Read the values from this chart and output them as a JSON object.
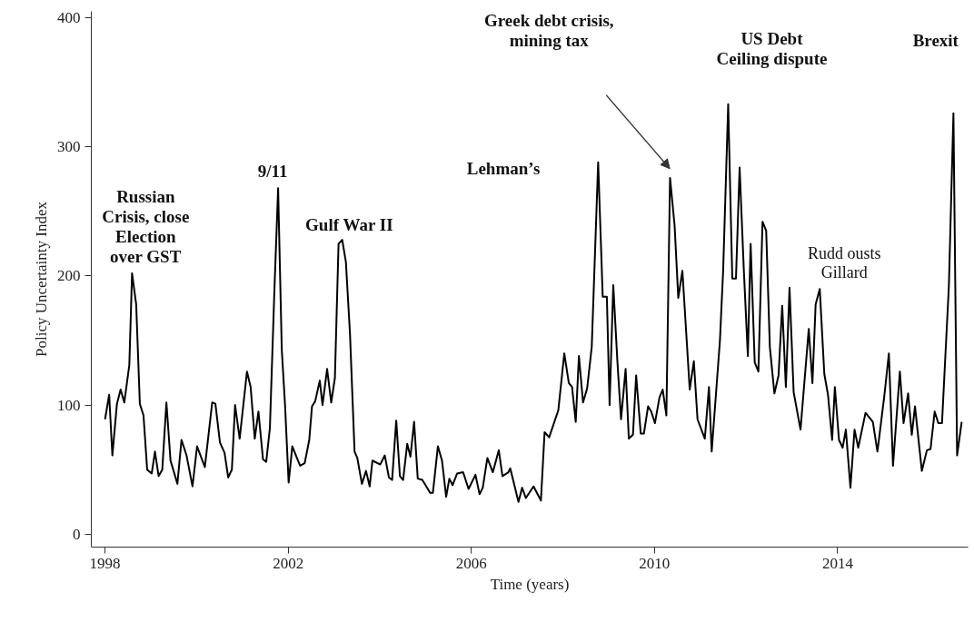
{
  "chart_data": {
    "type": "line",
    "xlabel": "Time (years)",
    "ylabel": "Policy Uncertainty Index",
    "color": "#000000",
    "x": [
      1998.0,
      1998.09,
      1998.16,
      1998.26,
      1998.34,
      1998.42,
      1998.53,
      1998.59,
      1998.68,
      1998.76,
      1998.84,
      1998.92,
      1999.02,
      1999.09,
      1999.17,
      1999.25,
      1999.34,
      1999.43,
      1999.58,
      1999.67,
      1999.78,
      1999.91,
      2000.01,
      2000.18,
      2000.34,
      2000.41,
      2000.51,
      2000.61,
      2000.69,
      2000.77,
      2000.84,
      2000.94,
      2001.1,
      2001.18,
      2001.27,
      2001.35,
      2001.45,
      2001.52,
      2001.6,
      2001.7,
      2001.78,
      2001.86,
      2001.93,
      2002.01,
      2002.09,
      2002.26,
      2002.36,
      2002.46,
      2002.52,
      2002.59,
      2002.69,
      2002.75,
      2002.85,
      2002.94,
      2003.02,
      2003.1,
      2003.18,
      2003.26,
      2003.35,
      2003.45,
      2003.51,
      2003.61,
      2003.7,
      2003.78,
      2003.84,
      2004.01,
      2004.11,
      2004.2,
      2004.27,
      2004.36,
      2004.44,
      2004.51,
      2004.6,
      2004.67,
      2004.75,
      2004.83,
      2004.93,
      2005.1,
      2005.16,
      2005.27,
      2005.36,
      2005.45,
      2005.52,
      2005.59,
      2005.69,
      2005.82,
      2005.94,
      2006.09,
      2006.18,
      2006.25,
      2006.35,
      2006.47,
      2006.6,
      2006.68,
      2006.81,
      2006.85,
      2007.03,
      2007.11,
      2007.19,
      2007.36,
      2007.52,
      2007.6,
      2007.7,
      2007.9,
      2008.03,
      2008.13,
      2008.2,
      2008.28,
      2008.35,
      2008.44,
      2008.53,
      2008.63,
      2008.77,
      2008.87,
      2008.96,
      2009.02,
      2009.1,
      2009.19,
      2009.27,
      2009.37,
      2009.44,
      2009.53,
      2009.6,
      2009.7,
      2009.77,
      2009.86,
      2009.93,
      2010.01,
      2010.11,
      2010.18,
      2010.26,
      2010.34,
      2010.44,
      2010.52,
      2010.61,
      2010.77,
      2010.86,
      2010.94,
      2011.1,
      2011.19,
      2011.25,
      2011.43,
      2011.5,
      2011.61,
      2011.7,
      2011.78,
      2011.86,
      2011.95,
      2012.04,
      2012.1,
      2012.19,
      2012.27,
      2012.36,
      2012.44,
      2012.52,
      2012.62,
      2012.71,
      2012.79,
      2012.87,
      2012.95,
      2013.04,
      2013.19,
      2013.37,
      2013.45,
      2013.52,
      2013.61,
      2013.71,
      2013.79,
      2013.88,
      2013.94,
      2014.03,
      2014.11,
      2014.18,
      2014.28,
      2014.37,
      2014.45,
      2014.61,
      2014.77,
      2014.87,
      2015.02,
      2015.12,
      2015.21,
      2015.36,
      2015.44,
      2015.54,
      2015.62,
      2015.69,
      2015.84,
      2015.95,
      2016.03,
      2016.12,
      2016.2,
      2016.28,
      2016.43,
      2016.53,
      2016.61,
      2016.71
    ],
    "values": [
      89,
      108,
      61,
      101,
      112,
      102,
      131,
      202,
      178,
      101,
      92,
      50,
      47,
      64,
      45,
      50,
      102,
      57,
      39,
      73,
      61,
      37,
      68,
      52,
      102,
      101,
      71,
      63,
      44,
      50,
      100,
      74,
      126,
      114,
      74,
      95,
      58,
      56,
      82,
      190,
      268,
      143,
      101,
      40,
      68,
      53,
      55,
      73,
      99,
      103,
      119,
      100,
      128,
      102,
      121,
      225,
      228,
      211,
      155,
      64,
      59,
      39,
      49,
      37,
      57,
      54,
      61,
      44,
      42,
      88,
      45,
      42,
      70,
      60,
      87,
      43,
      42,
      32,
      32,
      68,
      57,
      29,
      43,
      38,
      47,
      48,
      35,
      46,
      31,
      36,
      59,
      48,
      65,
      45,
      48,
      51,
      25,
      36,
      28,
      37,
      26,
      79,
      75,
      96,
      140,
      117,
      114,
      87,
      138,
      102,
      113,
      145,
      288,
      184,
      184,
      100,
      193,
      134,
      89,
      128,
      74,
      77,
      123,
      78,
      78,
      99,
      95,
      86,
      106,
      112,
      92,
      276,
      239,
      183,
      204,
      112,
      134,
      89,
      74,
      114,
      64,
      150,
      204,
      333,
      198,
      198,
      284,
      206,
      138,
      225,
      133,
      126,
      242,
      235,
      145,
      109,
      123,
      177,
      114,
      191,
      110,
      81,
      159,
      117,
      178,
      190,
      124,
      108,
      73,
      114,
      73,
      67,
      81,
      36,
      81,
      67,
      94,
      87,
      64,
      107,
      140,
      53,
      126,
      86,
      109,
      77,
      99,
      49,
      65,
      66,
      95,
      86,
      86,
      192,
      326,
      61,
      87
    ],
    "xlim": [
      1997.7,
      2016.85
    ],
    "ylim": [
      -10,
      405
    ],
    "xticks": [
      1998,
      2002,
      2006,
      2010,
      2014
    ],
    "yticks": [
      0,
      100,
      200,
      300,
      400
    ],
    "annotations": [
      {
        "text": "Russian\nCrisis, close\nElection\nover GST",
        "x": 1998.59,
        "y": 202
      },
      {
        "text": "9/11",
        "x": 2001.78,
        "y": 268
      },
      {
        "text": "Gulf War II",
        "x": 2003.18,
        "y": 228
      },
      "Lehman’s",
      "Greek debt crisis,\nmining tax",
      {
        "text": "US Debt\nCeiling dispute",
        "x": 2011.61,
        "y": 333
      },
      {
        "text": "Rudd ousts\nGillard",
        "x": 2013.61,
        "y": 190
      },
      "Brexit"
    ]
  }
}
